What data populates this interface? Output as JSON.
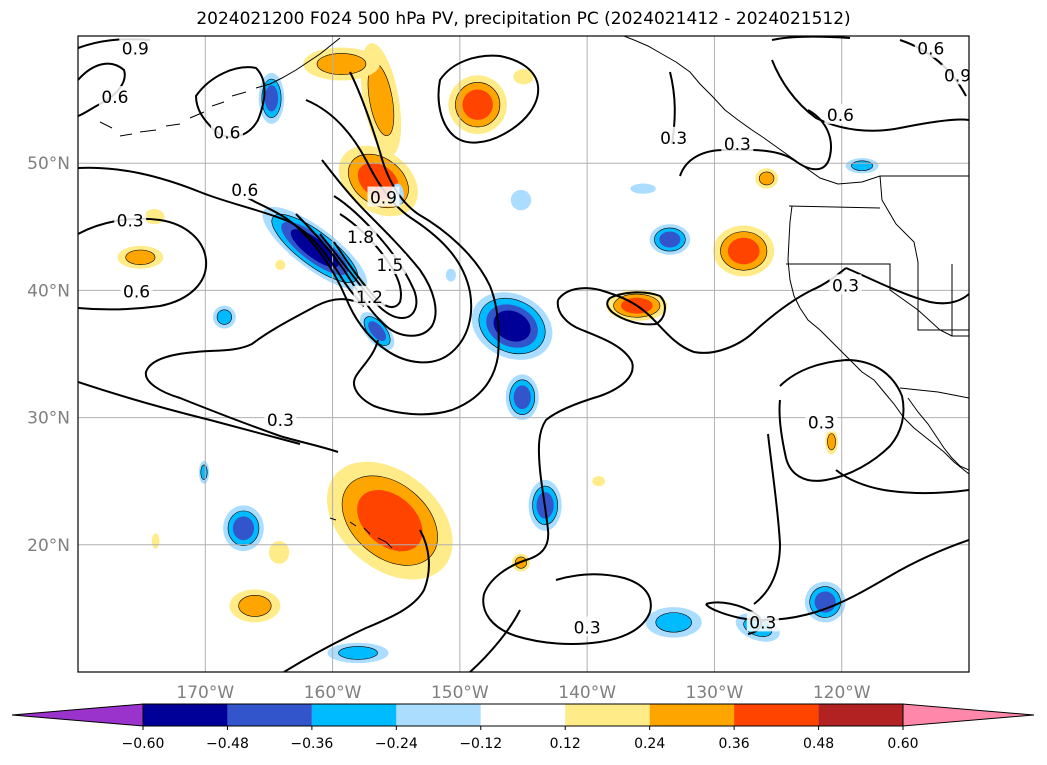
{
  "title": "2024021200 F024 500 hPa PV, precipitation PC (2024021412 - 2024021512)",
  "map": {
    "lon_range": [
      -180,
      -110
    ],
    "lat_range": [
      10,
      60
    ],
    "lon_ticks": [
      {
        "lon": -170,
        "label": "170°W"
      },
      {
        "lon": -160,
        "label": "160°W"
      },
      {
        "lon": -150,
        "label": "150°W"
      },
      {
        "lon": -140,
        "label": "140°W"
      },
      {
        "lon": -130,
        "label": "130°W"
      },
      {
        "lon": -120,
        "label": "120°W"
      }
    ],
    "lat_ticks": [
      {
        "lat": 20,
        "label": "20°N"
      },
      {
        "lat": 30,
        "label": "30°N"
      },
      {
        "lat": 40,
        "label": "40°N"
      },
      {
        "lat": 50,
        "label": "50°N"
      }
    ],
    "grid": true
  },
  "contour_labels": [
    {
      "text": "0.9",
      "lon": -175.5,
      "lat": 59.0
    },
    {
      "text": "0.6",
      "lon": -177.1,
      "lat": 55.2
    },
    {
      "text": "0.6",
      "lon": -168.3,
      "lat": 52.4
    },
    {
      "text": "0.6",
      "lon": -166.9,
      "lat": 47.9
    },
    {
      "text": "0.3",
      "lon": -175.9,
      "lat": 45.5
    },
    {
      "text": "0.6",
      "lon": -175.4,
      "lat": 39.9
    },
    {
      "text": "1.8",
      "lon": -157.8,
      "lat": 44.2
    },
    {
      "text": "1.5",
      "lon": -155.5,
      "lat": 42.0
    },
    {
      "text": "1.2",
      "lon": -157.1,
      "lat": 39.5
    },
    {
      "text": "0.9",
      "lon": -156.0,
      "lat": 47.3
    },
    {
      "text": "0.3",
      "lon": -133.2,
      "lat": 52.0
    },
    {
      "text": "0.3",
      "lon": -128.2,
      "lat": 51.5
    },
    {
      "text": "0.6",
      "lon": -113.0,
      "lat": 59.0
    },
    {
      "text": "0.9",
      "lon": -110.9,
      "lat": 56.9
    },
    {
      "text": "0.6",
      "lon": -120.1,
      "lat": 53.8
    },
    {
      "text": "0.3",
      "lon": -119.7,
      "lat": 40.4
    },
    {
      "text": "0.3",
      "lon": -121.6,
      "lat": 29.6
    },
    {
      "text": "0.3",
      "lon": -164.1,
      "lat": 29.8
    },
    {
      "text": "0.3",
      "lon": -140.0,
      "lat": 13.5
    },
    {
      "text": "0.3",
      "lon": -126.2,
      "lat": 13.9
    }
  ],
  "colorbar": {
    "colors": [
      "#9933cc",
      "#000099",
      "#3355cc",
      "#00bbff",
      "#aaddff",
      "#ffffff",
      "#ffeb88",
      "#ffa500",
      "#ff4400",
      "#b22222",
      "#ff88aa"
    ],
    "tick_labels": [
      "−0.60",
      "−0.48",
      "−0.36",
      "−0.24",
      "−0.12",
      "0.12",
      "0.24",
      "0.36",
      "0.48",
      "0.60"
    ]
  },
  "fill_colors": {
    "pos1": "#ffeb88",
    "pos2": "#ffa500",
    "pos3": "#ff4400",
    "neg1": "#aaddff",
    "neg2": "#00bbff",
    "neg3": "#3355cc",
    "neg4": "#000099"
  },
  "precip_blobs": [
    {
      "sign": "pos",
      "level": 3,
      "lon": -155.5,
      "lat": 21.9,
      "rx": 5.6,
      "ry": 3.8,
      "rot": 40
    },
    {
      "sign": "pos",
      "level": 3,
      "lon": -156.4,
      "lat": 48.6,
      "rx": 3.4,
      "ry": 2.4,
      "rot": 35
    },
    {
      "sign": "pos",
      "level": 2,
      "lon": -156.2,
      "lat": 55.0,
      "rx": 1.4,
      "ry": 4.5,
      "rot": -10
    },
    {
      "sign": "pos",
      "level": 2,
      "lon": -159.3,
      "lat": 57.8,
      "rx": 3.0,
      "ry": 1.3,
      "rot": 0
    },
    {
      "sign": "pos",
      "level": 3,
      "lon": -148.6,
      "lat": 54.6,
      "rx": 2.3,
      "ry": 2.3,
      "rot": 0
    },
    {
      "sign": "pos",
      "level": 3,
      "lon": -127.7,
      "lat": 43.1,
      "rx": 2.4,
      "ry": 2.0,
      "rot": 0
    },
    {
      "sign": "pos",
      "level": 3,
      "lon": -136.1,
      "lat": 38.8,
      "rx": 2.4,
      "ry": 1.2,
      "rot": 0
    },
    {
      "sign": "pos",
      "level": 2,
      "lon": -125.9,
      "lat": 48.8,
      "rx": 0.9,
      "ry": 0.8,
      "rot": 0
    },
    {
      "sign": "pos",
      "level": 2,
      "lon": -166.1,
      "lat": 15.2,
      "rx": 2.0,
      "ry": 1.3,
      "rot": 0
    },
    {
      "sign": "pos",
      "level": 2,
      "lon": -175.1,
      "lat": 42.6,
      "rx": 1.8,
      "ry": 0.9,
      "rot": 0
    },
    {
      "sign": "pos",
      "level": 2,
      "lon": -145.2,
      "lat": 18.6,
      "rx": 0.7,
      "ry": 0.7,
      "rot": 0
    },
    {
      "sign": "pos",
      "level": 2,
      "lon": -120.8,
      "lat": 28.1,
      "rx": 0.5,
      "ry": 1.0,
      "rot": 0
    },
    {
      "sign": "pos",
      "level": 1,
      "lon": -164.2,
      "lat": 19.4,
      "rx": 0.8,
      "ry": 0.9,
      "rot": 0
    },
    {
      "sign": "pos",
      "level": 1,
      "lon": -139.1,
      "lat": 25.0,
      "rx": 0.5,
      "ry": 0.4,
      "rot": 0
    },
    {
      "sign": "pos",
      "level": 1,
      "lon": -145.0,
      "lat": 56.8,
      "rx": 0.8,
      "ry": 0.6,
      "rot": 0
    },
    {
      "sign": "pos",
      "level": 1,
      "lon": -173.9,
      "lat": 20.3,
      "rx": 0.3,
      "ry": 0.6,
      "rot": 0
    },
    {
      "sign": "pos",
      "level": 1,
      "lon": -174.0,
      "lat": 45.8,
      "rx": 0.8,
      "ry": 0.6,
      "rot": 0
    },
    {
      "sign": "pos",
      "level": 1,
      "lon": -164.1,
      "lat": 42.0,
      "rx": 0.4,
      "ry": 0.4,
      "rot": 0
    },
    {
      "sign": "neg",
      "level": 4,
      "lon": -161.4,
      "lat": 43.3,
      "rx": 5.0,
      "ry": 1.6,
      "rot": 37
    },
    {
      "sign": "neg",
      "level": 3,
      "lon": -156.5,
      "lat": 36.8,
      "rx": 1.8,
      "ry": 0.9,
      "rot": 50
    },
    {
      "sign": "neg",
      "level": 4,
      "lon": -145.9,
      "lat": 37.2,
      "rx": 3.3,
      "ry": 2.5,
      "rot": 25
    },
    {
      "sign": "neg",
      "level": 3,
      "lon": -145.1,
      "lat": 31.6,
      "rx": 1.3,
      "ry": 1.8,
      "rot": 0
    },
    {
      "sign": "neg",
      "level": 3,
      "lon": -143.3,
      "lat": 23.1,
      "rx": 1.3,
      "ry": 2.0,
      "rot": 0
    },
    {
      "sign": "neg",
      "level": 3,
      "lon": -164.8,
      "lat": 55.1,
      "rx": 1.0,
      "ry": 2.0,
      "rot": 0
    },
    {
      "sign": "neg",
      "level": 3,
      "lon": -167.0,
      "lat": 21.3,
      "rx": 1.6,
      "ry": 1.8,
      "rot": 0
    },
    {
      "sign": "neg",
      "level": 3,
      "lon": -121.3,
      "lat": 15.5,
      "rx": 1.6,
      "ry": 1.6,
      "rot": 30
    },
    {
      "sign": "neg",
      "level": 2,
      "lon": -126.6,
      "lat": 13.5,
      "rx": 1.8,
      "ry": 1.0,
      "rot": 20
    },
    {
      "sign": "neg",
      "level": 2,
      "lon": -133.2,
      "lat": 13.9,
      "rx": 2.2,
      "ry": 1.2,
      "rot": 0
    },
    {
      "sign": "neg",
      "level": 3,
      "lon": -133.5,
      "lat": 44.0,
      "rx": 1.6,
      "ry": 1.2,
      "rot": 0
    },
    {
      "sign": "neg",
      "level": 2,
      "lon": -158.0,
      "lat": 11.5,
      "rx": 2.4,
      "ry": 0.8,
      "rot": 0
    },
    {
      "sign": "neg",
      "level": 2,
      "lon": -168.5,
      "lat": 37.9,
      "rx": 0.9,
      "ry": 0.9,
      "rot": 0
    },
    {
      "sign": "neg",
      "level": 2,
      "lon": -170.1,
      "lat": 25.7,
      "rx": 0.4,
      "ry": 0.9,
      "rot": 0
    },
    {
      "sign": "neg",
      "level": 2,
      "lon": -118.4,
      "lat": 49.8,
      "rx": 1.3,
      "ry": 0.6,
      "rot": 0
    },
    {
      "sign": "neg",
      "level": 1,
      "lon": -145.2,
      "lat": 47.1,
      "rx": 0.8,
      "ry": 0.8,
      "rot": 0
    },
    {
      "sign": "neg",
      "level": 1,
      "lon": -154.9,
      "lat": 47.5,
      "rx": 0.5,
      "ry": 0.9,
      "rot": 0
    },
    {
      "sign": "neg",
      "level": 1,
      "lon": -135.6,
      "lat": 48.0,
      "rx": 1.0,
      "ry": 0.4,
      "rot": 0
    },
    {
      "sign": "neg",
      "level": 1,
      "lon": -150.7,
      "lat": 41.2,
      "rx": 0.4,
      "ry": 0.5,
      "rot": 0
    }
  ]
}
